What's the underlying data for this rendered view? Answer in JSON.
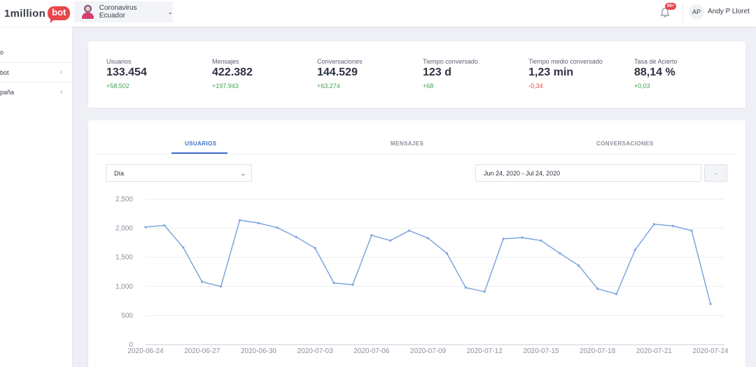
{
  "header": {
    "logo_text": "1million",
    "logo_bubble": "bot",
    "bot_name": "Coronavirus Ecuador",
    "notification_badge": "99+",
    "user_initials": "AP",
    "user_name": "Andy P Lloret"
  },
  "sidebar": {
    "items": [
      {
        "label": "o",
        "arrow": ""
      },
      {
        "label": "bot",
        "arrow": "‹"
      },
      {
        "label": "paña",
        "arrow": "‹"
      }
    ]
  },
  "kpis": [
    {
      "label": "Usuarios",
      "value": "133.454",
      "delta": "+58.502",
      "trend": "pos"
    },
    {
      "label": "Mensajes",
      "value": "422.382",
      "delta": "+197.943",
      "trend": "pos"
    },
    {
      "label": "Conversaciones",
      "value": "144.529",
      "delta": "+63.274",
      "trend": "pos"
    },
    {
      "label": "Tiempo conversado",
      "value": "123 d",
      "delta": "+68",
      "trend": "pos"
    },
    {
      "label": "Tiempo medio conversado",
      "value": "1,23 min",
      "delta": "-0,34",
      "trend": "neg"
    },
    {
      "label": "Tasa de Acierto",
      "value": "88,14 %",
      "delta": "+0,03",
      "trend": "pos"
    }
  ],
  "tabs": [
    {
      "label": "USUARIOS",
      "active": true
    },
    {
      "label": "MENSAJES",
      "active": false
    },
    {
      "label": "CONVERSACIONES",
      "active": false
    }
  ],
  "filters": {
    "granularity": "Día",
    "date_range": "Jun 24, 2020 - Jul 24, 2020"
  },
  "colors": {
    "line": "#7ea6df",
    "grid": "#eceef2",
    "accent": "#3c6fc4"
  },
  "chart_data": {
    "type": "line",
    "title": "",
    "xlabel": "",
    "ylabel": "",
    "ylim": [
      0,
      2500
    ],
    "yticks": [
      0,
      500,
      1000,
      1500,
      2000,
      2500
    ],
    "ytick_labels": [
      "0",
      "500",
      "1,000",
      "1,500",
      "2,000",
      "2,500"
    ],
    "xtick_labels": [
      "2020-06-24",
      "2020-06-27",
      "2020-06-30",
      "2020-07-03",
      "2020-07-06",
      "2020-07-09",
      "2020-07-12",
      "2020-07-15",
      "2020-07-18",
      "2020-07-21",
      "2020-07-24"
    ],
    "grid": true,
    "x": [
      "2020-06-24",
      "2020-06-25",
      "2020-06-26",
      "2020-06-27",
      "2020-06-28",
      "2020-06-29",
      "2020-06-30",
      "2020-07-01",
      "2020-07-02",
      "2020-07-03",
      "2020-07-04",
      "2020-07-05",
      "2020-07-06",
      "2020-07-07",
      "2020-07-08",
      "2020-07-09",
      "2020-07-10",
      "2020-07-11",
      "2020-07-12",
      "2020-07-13",
      "2020-07-14",
      "2020-07-15",
      "2020-07-16",
      "2020-07-17",
      "2020-07-18",
      "2020-07-19",
      "2020-07-20",
      "2020-07-21",
      "2020-07-22",
      "2020-07-23",
      "2020-07-24"
    ],
    "series": [
      {
        "values": [
          2020,
          2050,
          1670,
          1080,
          1000,
          2140,
          2090,
          2010,
          1850,
          1660,
          1060,
          1030,
          1880,
          1790,
          1960,
          1830,
          1570,
          980,
          910,
          1820,
          1840,
          1790,
          1570,
          1360,
          960,
          870,
          1630,
          2070,
          2040,
          1960,
          700
        ]
      }
    ]
  }
}
